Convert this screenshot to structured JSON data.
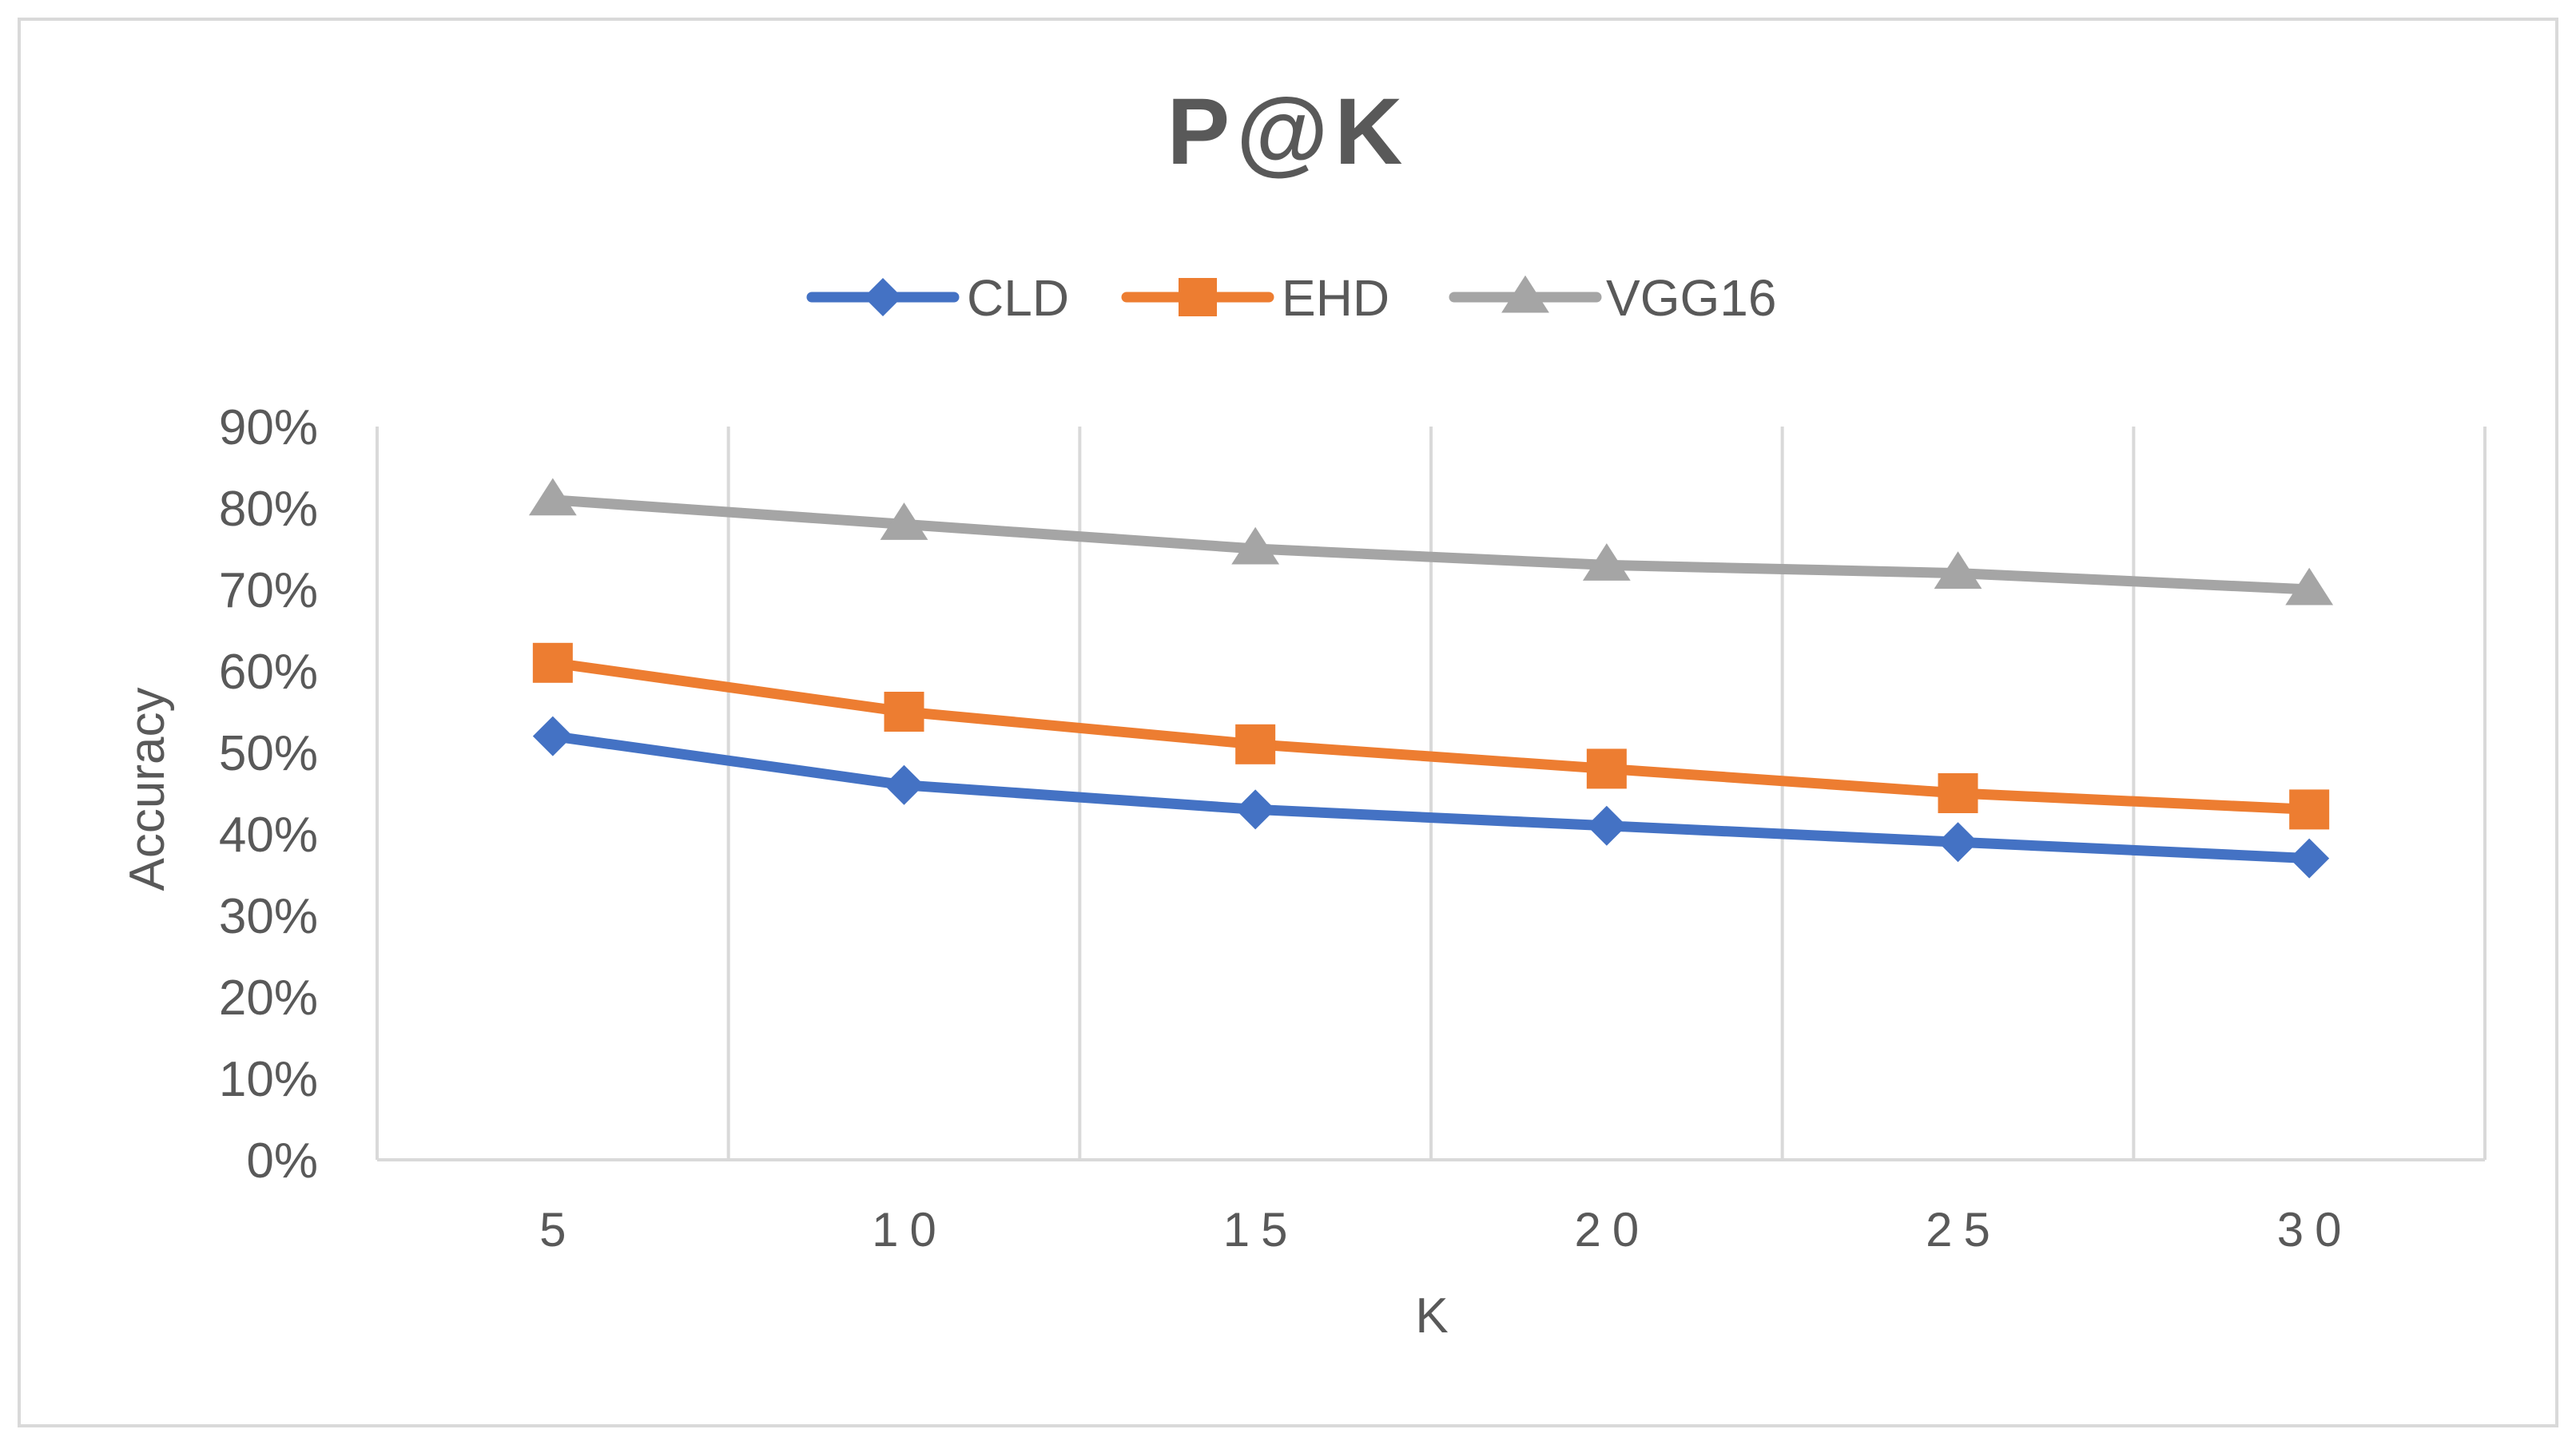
{
  "chart_data": {
    "type": "line",
    "title": "P@K",
    "xlabel": "K",
    "ylabel": "Accuracy",
    "x": [
      5,
      10,
      15,
      20,
      25,
      30
    ],
    "x_tick_labels": [
      "5",
      "10",
      "15",
      "20",
      "25",
      "30"
    ],
    "ylim": [
      0,
      90
    ],
    "y_ticks": [
      0,
      10,
      20,
      30,
      40,
      50,
      60,
      70,
      80,
      90
    ],
    "y_tick_labels": [
      "0%",
      "10%",
      "20%",
      "30%",
      "40%",
      "50%",
      "60%",
      "70%",
      "80%",
      "90%"
    ],
    "grid": "vertical",
    "legend_position": "top",
    "series": [
      {
        "name": "CLD",
        "marker": "diamond",
        "color": "#4472c4",
        "values": [
          52,
          46,
          43,
          41,
          39,
          37
        ]
      },
      {
        "name": "EHD",
        "marker": "square",
        "color": "#ed7d31",
        "values": [
          61,
          55,
          51,
          48,
          45,
          43
        ]
      },
      {
        "name": "VGG16",
        "marker": "triangle",
        "color": "#a5a5a5",
        "values": [
          81,
          78,
          75,
          73,
          72,
          70
        ]
      }
    ]
  }
}
